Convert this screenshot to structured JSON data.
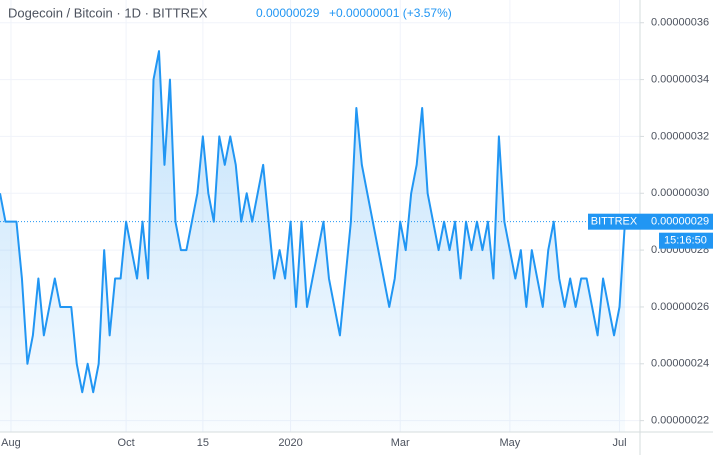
{
  "chart_data": {
    "type": "line",
    "title": "Dogecoin / Bitcoin · 1D · BITTREX",
    "last_price": "0.00000029",
    "change": "+0.00000001 (+3.57%)",
    "exchange_tag": "BITTREX",
    "countdown": "15:16:50",
    "price_line": {
      "value": 2.9e-07,
      "label": "0.00000029"
    },
    "color": "#2196f3",
    "grid": true,
    "categories": [
      null,
      null,
      "Aug",
      null,
      null,
      null,
      null,
      null,
      null,
      null,
      null,
      null,
      null,
      null,
      null,
      null,
      null,
      null,
      null,
      null,
      null,
      null,
      null,
      "Oct",
      null,
      null,
      null,
      null,
      null,
      null,
      null,
      null,
      null,
      null,
      null,
      null,
      null,
      "15",
      null,
      null,
      null,
      null,
      null,
      null,
      null,
      null,
      null,
      null,
      null,
      null,
      null,
      null,
      null,
      "2020",
      null,
      null,
      null,
      null,
      null,
      null,
      null,
      null,
      null,
      null,
      null,
      null,
      null,
      null,
      null,
      null,
      null,
      null,
      null,
      "Mar",
      null,
      null,
      null,
      null,
      null,
      null,
      null,
      null,
      null,
      null,
      null,
      null,
      null,
      null,
      null,
      null,
      null,
      null,
      null,
      "May",
      null,
      null,
      null,
      null,
      null,
      null,
      null,
      null,
      null,
      null,
      null,
      null,
      null,
      null,
      null,
      null,
      null,
      null,
      null,
      "Jul",
      null
    ],
    "values": [
      3e-07,
      2.9e-07,
      2.9e-07,
      2.9e-07,
      2.7e-07,
      2.4e-07,
      2.5e-07,
      2.7e-07,
      2.5e-07,
      2.6e-07,
      2.7e-07,
      2.6e-07,
      2.6e-07,
      2.6e-07,
      2.4e-07,
      2.3e-07,
      2.4e-07,
      2.3e-07,
      2.4e-07,
      2.8e-07,
      2.5e-07,
      2.7e-07,
      2.7e-07,
      2.9e-07,
      2.8e-07,
      2.7e-07,
      2.9e-07,
      2.7e-07,
      3.4e-07,
      3.5e-07,
      3.1e-07,
      3.4e-07,
      2.9e-07,
      2.8e-07,
      2.8e-07,
      2.9e-07,
      3e-07,
      3.2e-07,
      3e-07,
      2.9e-07,
      3.2e-07,
      3.1e-07,
      3.2e-07,
      3.1e-07,
      2.9e-07,
      3e-07,
      2.9e-07,
      3e-07,
      3.1e-07,
      2.9e-07,
      2.7e-07,
      2.8e-07,
      2.7e-07,
      2.9e-07,
      2.6e-07,
      2.9e-07,
      2.6e-07,
      2.7e-07,
      2.8e-07,
      2.9e-07,
      2.7e-07,
      2.6e-07,
      2.5e-07,
      2.7e-07,
      2.9e-07,
      3.3e-07,
      3.1e-07,
      3e-07,
      2.9e-07,
      2.8e-07,
      2.7e-07,
      2.6e-07,
      2.7e-07,
      2.9e-07,
      2.8e-07,
      3e-07,
      3.1e-07,
      3.3e-07,
      3e-07,
      2.9e-07,
      2.8e-07,
      2.9e-07,
      2.8e-07,
      2.9e-07,
      2.7e-07,
      2.9e-07,
      2.8e-07,
      2.9e-07,
      2.8e-07,
      2.9e-07,
      2.7e-07,
      3.2e-07,
      2.9e-07,
      2.8e-07,
      2.7e-07,
      2.8e-07,
      2.6e-07,
      2.8e-07,
      2.7e-07,
      2.6e-07,
      2.8e-07,
      2.9e-07,
      2.7e-07,
      2.6e-07,
      2.7e-07,
      2.6e-07,
      2.7e-07,
      2.7e-07,
      2.6e-07,
      2.5e-07,
      2.7e-07,
      2.6e-07,
      2.5e-07,
      2.6e-07,
      2.9e-07
    ],
    "ylim": [
      2.16e-07,
      3.68e-07
    ],
    "yticks": [
      {
        "value": 2.2e-07,
        "label": "0.00000022"
      },
      {
        "value": 2.4e-07,
        "label": "0.00000024"
      },
      {
        "value": 2.6e-07,
        "label": "0.00000026"
      },
      {
        "value": 2.8e-07,
        "label": "0.00000028"
      },
      {
        "value": 3e-07,
        "label": "0.00000030"
      },
      {
        "value": 3.2e-07,
        "label": "0.00000032"
      },
      {
        "value": 3.4e-07,
        "label": "0.00000034"
      },
      {
        "value": 3.6e-07,
        "label": "0.00000036"
      }
    ]
  }
}
